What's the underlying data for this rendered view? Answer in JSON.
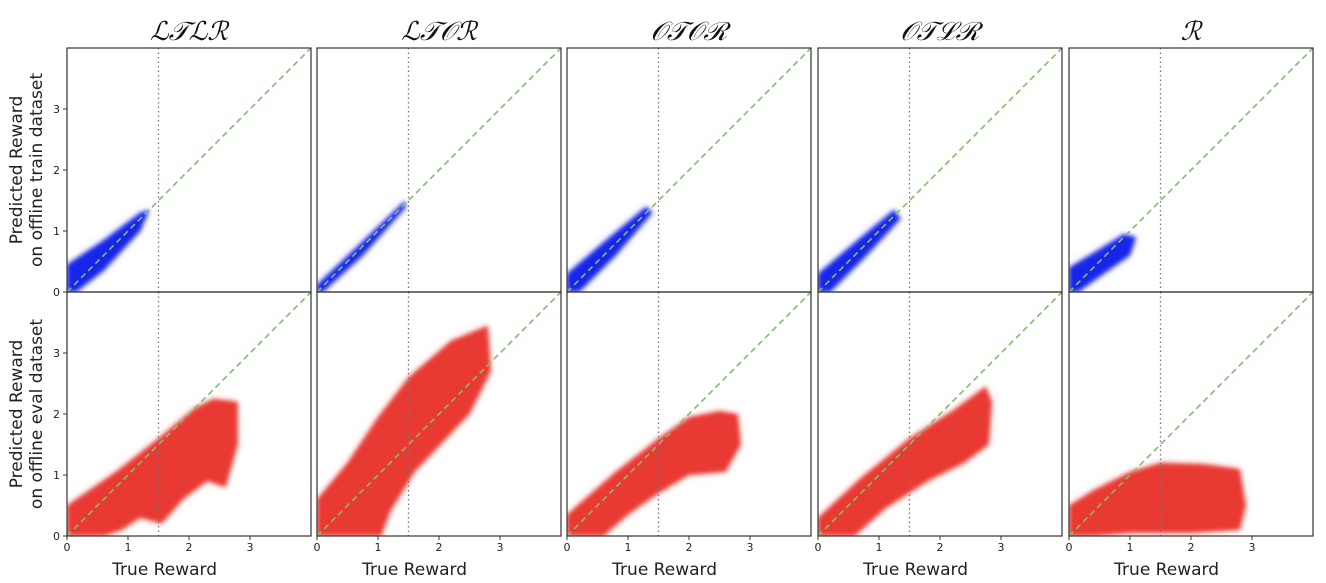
{
  "chart_data": {
    "type": "scatter",
    "layout": "2 rows x 5 columns, shared axes",
    "columns": [
      {
        "title": "ℒ𝒯ℒℛ"
      },
      {
        "title": "ℒ𝒯𝒪ℛ"
      },
      {
        "title": "𝒪𝒯𝒪ℛ"
      },
      {
        "title": "𝒪𝒯ℒℛ"
      },
      {
        "title": "ℛ"
      }
    ],
    "rows": [
      {
        "ylabel_line1": "Predicted Reward",
        "ylabel_line2": "on offline train dataset",
        "color": "#0a1fe8"
      },
      {
        "ylabel_line1": "Predicted Reward",
        "ylabel_line2": "on offline eval dataset",
        "color": "#e8312a"
      }
    ],
    "xlabel": "True Reward",
    "xlim": [
      0,
      4
    ],
    "ylim": [
      0,
      4
    ],
    "xticks": [
      "0",
      "1",
      "2",
      "3"
    ],
    "yticks": [
      "0",
      "1",
      "2",
      "3"
    ],
    "reference_lines": {
      "diagonal": {
        "style": "dashed",
        "color": "#7fbf6a",
        "desc": "y = x"
      },
      "vertical": {
        "x": 1.5,
        "style": "dotted",
        "color": "#777777"
      }
    },
    "clouds": [
      [
        {
          "desc": "train cloud along diagonal",
          "x_max": 1.4,
          "outline": [
            [
              0,
              0
            ],
            [
              0,
              0.45
            ],
            [
              0.6,
              0.85
            ],
            [
              1.2,
              1.3
            ],
            [
              1.35,
              1.35
            ],
            [
              1.2,
              1.0
            ],
            [
              0.6,
              0.35
            ],
            [
              0.15,
              0
            ]
          ]
        },
        {
          "desc": "train cloud narrow",
          "x_max": 1.5,
          "outline": [
            [
              0,
              0
            ],
            [
              0,
              0.12
            ],
            [
              0.7,
              0.78
            ],
            [
              1.45,
              1.5
            ],
            [
              1.45,
              1.38
            ],
            [
              0.75,
              0.6
            ],
            [
              0.1,
              0
            ]
          ]
        },
        {
          "desc": "train cloud along diagonal",
          "x_max": 1.45,
          "outline": [
            [
              0,
              0
            ],
            [
              0,
              0.3
            ],
            [
              0.7,
              0.9
            ],
            [
              1.3,
              1.4
            ],
            [
              1.4,
              1.3
            ],
            [
              0.8,
              0.6
            ],
            [
              0.2,
              0
            ]
          ]
        },
        {
          "desc": "train cloud along diagonal",
          "x_max": 1.4,
          "outline": [
            [
              0,
              0
            ],
            [
              0,
              0.3
            ],
            [
              0.65,
              0.85
            ],
            [
              1.25,
              1.35
            ],
            [
              1.35,
              1.2
            ],
            [
              0.75,
              0.55
            ],
            [
              0.2,
              0
            ]
          ]
        },
        {
          "desc": "train cloud under-predicting",
          "x_max": 1.2,
          "outline": [
            [
              0,
              0
            ],
            [
              0,
              0.4
            ],
            [
              0.5,
              0.7
            ],
            [
              0.9,
              0.95
            ],
            [
              1.1,
              0.9
            ],
            [
              1.0,
              0.6
            ],
            [
              0.5,
              0.25
            ],
            [
              0.15,
              0
            ]
          ]
        }
      ],
      [
        {
          "desc": "eval cloud, plateau near 2.2",
          "x_max": 2.85,
          "outline": [
            [
              0,
              0
            ],
            [
              0,
              0.5
            ],
            [
              0.8,
              1.05
            ],
            [
              1.5,
              1.6
            ],
            [
              2.1,
              2.1
            ],
            [
              2.4,
              2.25
            ],
            [
              2.8,
              2.2
            ],
            [
              2.8,
              1.5
            ],
            [
              2.6,
              0.8
            ],
            [
              2.3,
              0.9
            ],
            [
              1.9,
              0.6
            ],
            [
              1.55,
              0.2
            ],
            [
              1.2,
              0.3
            ],
            [
              0.9,
              0.1
            ],
            [
              0.6,
              0
            ],
            [
              0.3,
              0
            ]
          ]
        },
        {
          "desc": "eval cloud, over-predicting up to 3.5",
          "x_max": 2.85,
          "outline": [
            [
              0,
              0
            ],
            [
              0,
              0.6
            ],
            [
              0.5,
              1.2
            ],
            [
              1.0,
              1.95
            ],
            [
              1.5,
              2.6
            ],
            [
              2.2,
              3.2
            ],
            [
              2.8,
              3.45
            ],
            [
              2.85,
              2.7
            ],
            [
              2.5,
              2.0
            ],
            [
              1.6,
              1.05
            ],
            [
              1.2,
              0.4
            ],
            [
              1.05,
              0
            ]
          ]
        },
        {
          "desc": "eval cloud, plateau near 2.0",
          "x_max": 2.9,
          "outline": [
            [
              0,
              0
            ],
            [
              0,
              0.35
            ],
            [
              0.8,
              1.05
            ],
            [
              1.5,
              1.6
            ],
            [
              2.0,
              1.95
            ],
            [
              2.5,
              2.05
            ],
            [
              2.8,
              2.0
            ],
            [
              2.85,
              1.5
            ],
            [
              2.6,
              1.05
            ],
            [
              2.0,
              1.0
            ],
            [
              1.5,
              0.7
            ],
            [
              1.0,
              0.35
            ],
            [
              0.6,
              0
            ]
          ]
        },
        {
          "desc": "eval cloud, linear up to 2.5",
          "x_max": 2.85,
          "outline": [
            [
              0,
              0
            ],
            [
              0,
              0.3
            ],
            [
              0.7,
              0.95
            ],
            [
              1.5,
              1.6
            ],
            [
              2.2,
              2.05
            ],
            [
              2.75,
              2.45
            ],
            [
              2.85,
              2.2
            ],
            [
              2.8,
              1.5
            ],
            [
              2.4,
              1.2
            ],
            [
              1.8,
              0.9
            ],
            [
              1.1,
              0.45
            ],
            [
              0.6,
              0
            ]
          ]
        },
        {
          "desc": "eval cloud, flat near 1.2",
          "x_max": 2.9,
          "outline": [
            [
              0,
              0
            ],
            [
              0,
              0.5
            ],
            [
              0.4,
              0.75
            ],
            [
              1.0,
              1.05
            ],
            [
              1.5,
              1.2
            ],
            [
              2.2,
              1.18
            ],
            [
              2.8,
              1.1
            ],
            [
              2.9,
              0.5
            ],
            [
              2.8,
              0.1
            ],
            [
              2.0,
              0.05
            ],
            [
              1.0,
              0.05
            ],
            [
              0.4,
              0
            ]
          ]
        }
      ]
    ]
  }
}
